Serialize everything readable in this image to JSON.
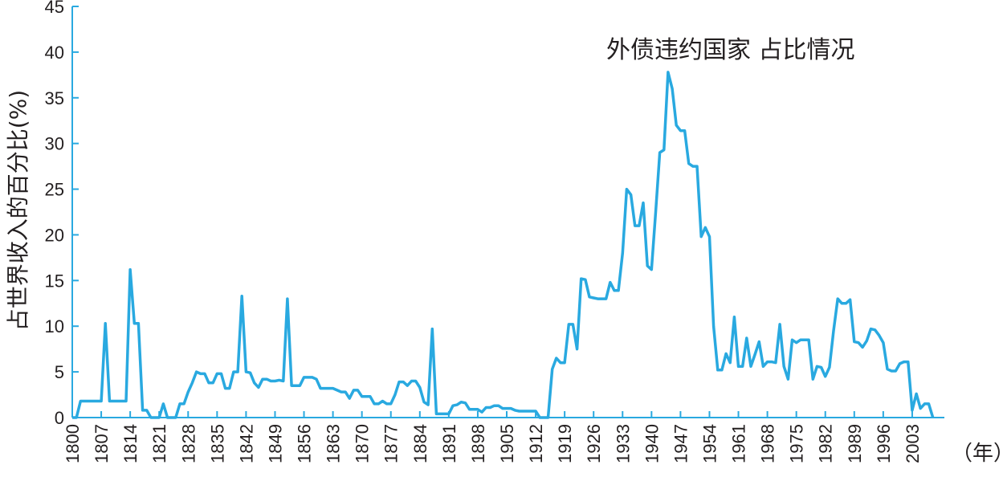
{
  "chart_data": {
    "type": "line",
    "title": "外债违约国家  占比情况",
    "ylabel": "占世界收入的百分比(%)",
    "xlabel": "（年）",
    "xlim": [
      1800,
      2010
    ],
    "ylim": [
      0,
      45
    ],
    "y_ticks": [
      0,
      5,
      10,
      15,
      20,
      25,
      30,
      35,
      40,
      45
    ],
    "x_ticks": [
      1800,
      1807,
      1814,
      1821,
      1828,
      1835,
      1842,
      1849,
      1856,
      1863,
      1870,
      1877,
      1884,
      1891,
      1898,
      1905,
      1912,
      1919,
      1926,
      1933,
      1940,
      1947,
      1954,
      1961,
      1968,
      1975,
      1982,
      1989,
      1996,
      2003
    ],
    "grid": false,
    "series": [
      {
        "color": "#29a9e0",
        "x": [
          1800,
          1801,
          1802,
          1803,
          1804,
          1805,
          1806,
          1807,
          1808,
          1809,
          1810,
          1811,
          1812,
          1813,
          1814,
          1815,
          1816,
          1817,
          1818,
          1819,
          1820,
          1821,
          1822,
          1823,
          1824,
          1825,
          1826,
          1827,
          1828,
          1829,
          1830,
          1831,
          1832,
          1833,
          1834,
          1835,
          1836,
          1837,
          1838,
          1839,
          1840,
          1841,
          1842,
          1843,
          1844,
          1845,
          1846,
          1847,
          1848,
          1849,
          1850,
          1851,
          1852,
          1853,
          1854,
          1855,
          1856,
          1857,
          1858,
          1859,
          1860,
          1861,
          1862,
          1863,
          1864,
          1865,
          1866,
          1867,
          1868,
          1869,
          1870,
          1871,
          1872,
          1873,
          1874,
          1875,
          1876,
          1877,
          1878,
          1879,
          1880,
          1881,
          1882,
          1883,
          1884,
          1885,
          1886,
          1887,
          1888,
          1889,
          1890,
          1891,
          1892,
          1893,
          1894,
          1895,
          1896,
          1897,
          1898,
          1899,
          1900,
          1901,
          1902,
          1903,
          1904,
          1905,
          1906,
          1907,
          1908,
          1909,
          1910,
          1911,
          1912,
          1913,
          1914,
          1915,
          1916,
          1917,
          1918,
          1919,
          1920,
          1921,
          1922,
          1923,
          1924,
          1925,
          1926,
          1927,
          1928,
          1929,
          1930,
          1931,
          1932,
          1933,
          1934,
          1935,
          1936,
          1937,
          1938,
          1939,
          1940,
          1941,
          1942,
          1943,
          1944,
          1945,
          1946,
          1947,
          1948,
          1949,
          1950,
          1951,
          1952,
          1953,
          1954,
          1955,
          1956,
          1957,
          1958,
          1959,
          1960,
          1961,
          1962,
          1963,
          1964,
          1965,
          1966,
          1967,
          1968,
          1969,
          1970,
          1971,
          1972,
          1973,
          1974,
          1975,
          1976,
          1977,
          1978,
          1979,
          1980,
          1981,
          1982,
          1983,
          1984,
          1985,
          1986,
          1987,
          1988,
          1989,
          1990,
          1991,
          1992,
          1993,
          1994,
          1995,
          1996,
          1997,
          1998,
          1999,
          2000,
          2001,
          2002,
          2003,
          2004,
          2005,
          2006,
          2007,
          2008
        ],
        "values": [
          0,
          0,
          1.8,
          1.8,
          1.8,
          1.8,
          1.8,
          1.8,
          10.3,
          1.8,
          1.8,
          1.8,
          1.8,
          1.8,
          16.2,
          10.3,
          10.3,
          0.8,
          0.8,
          0,
          0,
          0,
          1.5,
          0,
          0,
          0,
          1.5,
          1.5,
          2.8,
          3.8,
          5,
          4.8,
          4.8,
          3.8,
          3.8,
          4.8,
          4.8,
          3.2,
          3.2,
          5,
          5,
          13.3,
          5,
          4.9,
          3.8,
          3.3,
          4.2,
          4.2,
          4,
          4,
          4.1,
          4,
          13,
          3.5,
          3.5,
          3.5,
          4.4,
          4.4,
          4.4,
          4.2,
          3.2,
          3.2,
          3.2,
          3.2,
          3,
          2.8,
          2.8,
          2.1,
          3,
          3,
          2.3,
          2.3,
          2.3,
          1.5,
          1.5,
          1.8,
          1.5,
          1.5,
          2.5,
          3.9,
          3.9,
          3.5,
          4,
          4,
          3.3,
          1.7,
          1.4,
          9.7,
          0.4,
          0.4,
          0.4,
          0.4,
          1.3,
          1.4,
          1.7,
          1.6,
          0.9,
          0.9,
          0.9,
          0.6,
          1.1,
          1.1,
          1.3,
          1.3,
          1,
          1,
          1,
          0.8,
          0.7,
          0.7,
          0.7,
          0.7,
          0.7,
          0,
          0,
          0,
          5.3,
          6.5,
          6,
          6,
          10.2,
          10.2,
          7.5,
          15.2,
          15.1,
          13.2,
          13.1,
          13,
          13,
          13,
          14.8,
          13.9,
          13.9,
          18,
          25,
          24.4,
          21,
          21,
          23.5,
          16.6,
          16.2,
          22.5,
          29,
          29.3,
          37.8,
          36,
          32,
          31.4,
          31.4,
          27.8,
          27.5,
          27.5,
          19.8,
          20.8,
          19.8,
          10,
          5.2,
          5.2,
          7,
          6,
          11,
          5.6,
          5.6,
          8.7,
          5.6,
          6.9,
          8.3,
          5.6,
          6.1,
          6.1,
          6,
          10.2,
          5.6,
          4.2,
          8.5,
          8.2,
          8.5,
          8.5,
          8.5,
          4.2,
          5.6,
          5.5,
          4.5,
          5.5,
          9.5,
          13,
          12.5,
          12.5,
          12.9,
          8.3,
          8.2,
          7.7,
          8.4,
          9.7,
          9.6,
          9,
          8.2,
          5.3,
          5.1,
          5.1,
          5.9,
          6.1,
          6.1,
          0.8,
          2.6,
          1,
          1.5,
          1.5,
          0
        ]
      }
    ]
  }
}
